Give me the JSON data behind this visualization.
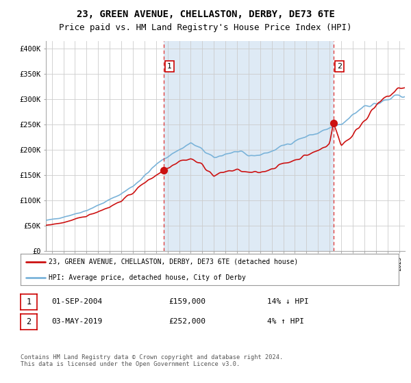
{
  "title": "23, GREEN AVENUE, CHELLASTON, DERBY, DE73 6TE",
  "subtitle": "Price paid vs. HM Land Registry's House Price Index (HPI)",
  "title_fontsize": 10,
  "subtitle_fontsize": 9,
  "ylabel_ticks": [
    "£0",
    "£50K",
    "£100K",
    "£150K",
    "£200K",
    "£250K",
    "£300K",
    "£350K",
    "£400K"
  ],
  "ytick_values": [
    0,
    50000,
    100000,
    150000,
    200000,
    250000,
    300000,
    350000,
    400000
  ],
  "ylim": [
    0,
    415000
  ],
  "xlim_start": 1994.5,
  "xlim_end": 2025.5,
  "hpi_color": "#7ab3d9",
  "price_color": "#cc1111",
  "vline_color": "#dd3333",
  "shade_color": "#deeaf5",
  "marker1_x": 2004.67,
  "marker1_y": 159000,
  "marker1_label": "1",
  "marker2_x": 2019.33,
  "marker2_y": 252000,
  "marker2_label": "2",
  "legend_line1": "23, GREEN AVENUE, CHELLASTON, DERBY, DE73 6TE (detached house)",
  "legend_line2": "HPI: Average price, detached house, City of Derby",
  "table_row1": [
    "1",
    "01-SEP-2004",
    "£159,000",
    "14% ↓ HPI"
  ],
  "table_row2": [
    "2",
    "03-MAY-2019",
    "£252,000",
    "4% ↑ HPI"
  ],
  "footnote": "Contains HM Land Registry data © Crown copyright and database right 2024.\nThis data is licensed under the Open Government Licence v3.0.",
  "background_color": "#ffffff",
  "grid_color": "#cccccc"
}
